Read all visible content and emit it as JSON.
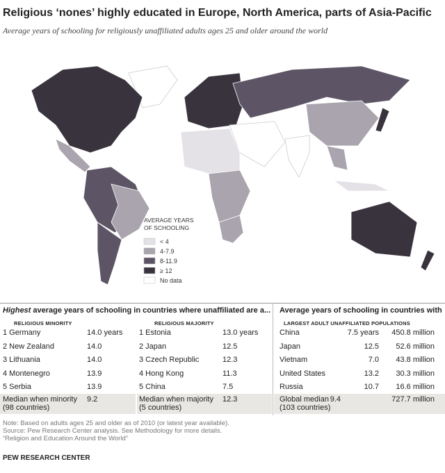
{
  "header": {
    "title": "Religious ‘nones’ highly educated in Europe, North America, parts of Asia-Pacific",
    "subtitle": "Average years of schooling for religiously unaffiliated adults ages 25 and older around the world"
  },
  "legend": {
    "title_line1": "AVERAGE YEARS",
    "title_line2": "OF SCHOOLING",
    "items": [
      {
        "label": "< 4",
        "color": "#e4e2e6"
      },
      {
        "label": "4-7.9",
        "color": "#a9a4ad"
      },
      {
        "label": "8-11.9",
        "color": "#5d5566"
      },
      {
        "label": "≥ 12",
        "color": "#39333e"
      },
      {
        "label": "No data",
        "color": "#ffffff"
      }
    ]
  },
  "left_table": {
    "heading_emphasis": "Highest",
    "heading_rest": " average years of schooling in countries where unaffiliated are a...",
    "minority": {
      "title": "RELIGIOUS MINORITY",
      "rows": [
        [
          "1 Germany",
          "14.0 years"
        ],
        [
          "2 New Zealand",
          "14.0"
        ],
        [
          "3 Lithuania",
          "14.0"
        ],
        [
          "4 Montenegro",
          "13.9"
        ],
        [
          "5 Serbia",
          "13.9"
        ]
      ],
      "median": {
        "label_line1": "Median when minority",
        "label_line2": "(98 countries)",
        "value": "9.2"
      }
    },
    "majority": {
      "title": "RELIGIOUS MAJORITY",
      "rows": [
        [
          "1 Estonia",
          "13.0 years"
        ],
        [
          "2 Japan",
          "12.5"
        ],
        [
          "3 Czech Republic",
          "12.3"
        ],
        [
          "4 Hong Kong",
          "11.3"
        ],
        [
          "5 China",
          "7.5"
        ]
      ],
      "median": {
        "label_line1": "Median when majority",
        "label_line2": "(5 countries)",
        "value": "12.3"
      }
    }
  },
  "right_table": {
    "heading": "Average years of schooling in countries with",
    "subheading": "LARGEST ADULT UNAFFILIATED POPULATIONS",
    "rows": [
      [
        "China",
        "7.5 years",
        "450.8 million"
      ],
      [
        "Japan",
        "12.5",
        "52.6 million"
      ],
      [
        "Vietnam",
        "7.0",
        "43.8 million"
      ],
      [
        "United States",
        "13.2",
        "30.3 million"
      ],
      [
        "Russia",
        "10.7",
        "16.6 million"
      ]
    ],
    "median": {
      "label_line1": "Global median",
      "label_line2": "(103 countries)",
      "value": "9.4",
      "population": "727.7 million"
    }
  },
  "footer": {
    "notes": [
      "Note: Based on adults ages 25 and older as of 2010 (or latest year available).",
      "Source: Pew Research Center analysis. See Methodology for more details.",
      "“Religion and Education Around the World”"
    ],
    "source": "PEW RESEARCH CENTER"
  }
}
